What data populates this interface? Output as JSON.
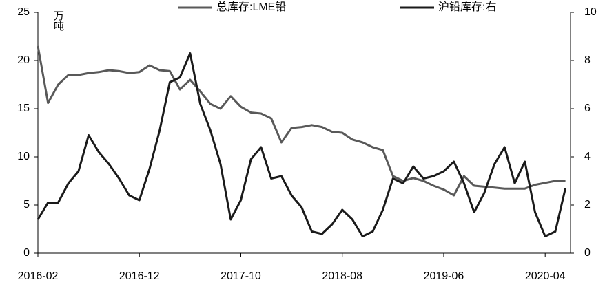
{
  "chart_data": {
    "type": "line",
    "unit_label": "万吨",
    "x": [
      "2016-02",
      "2016-03",
      "2016-04",
      "2016-05",
      "2016-06",
      "2016-07",
      "2016-08",
      "2016-09",
      "2016-10",
      "2016-11",
      "2016-12",
      "2017-01",
      "2017-02",
      "2017-03",
      "2017-04",
      "2017-05",
      "2017-06",
      "2017-07",
      "2017-08",
      "2017-09",
      "2017-10",
      "2017-11",
      "2017-12",
      "2018-01",
      "2018-02",
      "2018-03",
      "2018-04",
      "2018-05",
      "2018-06",
      "2018-07",
      "2018-08",
      "2018-09",
      "2018-10",
      "2018-11",
      "2018-12",
      "2019-01",
      "2019-02",
      "2019-03",
      "2019-04",
      "2019-05",
      "2019-06",
      "2019-07",
      "2019-08",
      "2019-09",
      "2019-10",
      "2019-11",
      "2019-12",
      "2020-01",
      "2020-02",
      "2020-03",
      "2020-04",
      "2020-05",
      "2020-06"
    ],
    "xticks": [
      "2016-02",
      "2016-12",
      "2017-10",
      "2018-08",
      "2019-06",
      "2020-04"
    ],
    "series": [
      {
        "name": "总库存:LME铅",
        "color": "#595959",
        "axis": "y",
        "values": [
          21.5,
          15.6,
          17.5,
          18.5,
          18.5,
          18.7,
          18.8,
          19.0,
          18.9,
          18.7,
          18.8,
          19.5,
          19.0,
          18.9,
          17.0,
          18.0,
          16.8,
          15.5,
          15.0,
          16.3,
          15.2,
          14.6,
          14.5,
          14.0,
          11.5,
          13.0,
          13.1,
          13.3,
          13.1,
          12.6,
          12.5,
          11.8,
          11.5,
          11.0,
          10.7,
          8.0,
          7.5,
          7.8,
          7.5,
          7.0,
          6.6,
          6.0,
          8.0,
          7.0,
          6.9,
          6.8,
          6.7,
          6.7,
          6.7,
          7.1,
          7.3,
          7.5,
          7.5
        ]
      },
      {
        "name": "沪铅库存:右",
        "color": "#1a1a1a",
        "axis": "y2",
        "values": [
          1.4,
          2.1,
          2.1,
          2.9,
          3.4,
          4.9,
          4.2,
          3.7,
          3.1,
          2.4,
          2.2,
          3.5,
          5.1,
          7.1,
          7.3,
          8.3,
          6.2,
          5.1,
          3.7,
          1.4,
          2.2,
          3.9,
          4.4,
          3.1,
          3.2,
          2.4,
          1.9,
          0.9,
          0.8,
          1.2,
          1.8,
          1.4,
          0.7,
          0.9,
          1.8,
          3.1,
          2.9,
          3.6,
          3.1,
          3.2,
          3.4,
          3.8,
          2.9,
          1.7,
          2.5,
          3.7,
          4.4,
          2.9,
          3.8,
          1.7,
          0.7,
          0.9,
          2.7
        ]
      }
    ],
    "ylim": [
      0,
      25
    ],
    "yticks": [
      0,
      5,
      10,
      15,
      20,
      25
    ],
    "y2lim": [
      0,
      10
    ],
    "y2ticks": [
      0,
      2,
      4,
      6,
      8,
      10
    ],
    "legend": "top"
  }
}
